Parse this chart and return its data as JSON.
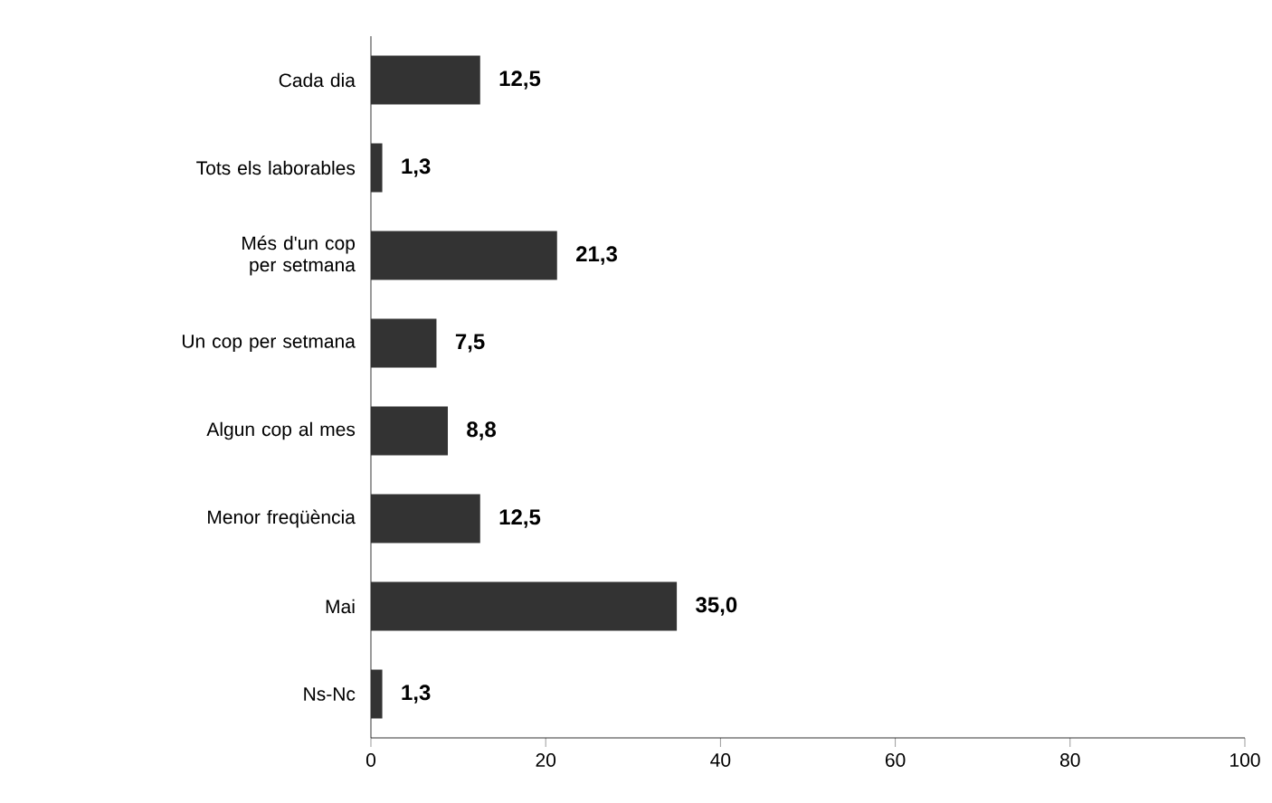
{
  "chart_data": {
    "type": "bar",
    "orientation": "horizontal",
    "categories": [
      "Cada dia",
      "Tots els laborables",
      "Més d'un cop per setmana",
      "Un cop per setmana",
      "Algun cop al mes",
      "Menor freqüència",
      "Mai",
      "Ns-Nc"
    ],
    "values": [
      12.5,
      1.3,
      21.3,
      7.5,
      8.8,
      12.5,
      35.0,
      1.3
    ],
    "value_labels": [
      "12,5",
      "1,3",
      "21,3",
      "7,5",
      "8,8",
      "12,5",
      "35,0",
      "1,3"
    ],
    "color": "#333333",
    "xlim": [
      0,
      100
    ],
    "xticks": [
      0,
      20,
      40,
      60,
      80,
      100
    ],
    "grid": false
  }
}
